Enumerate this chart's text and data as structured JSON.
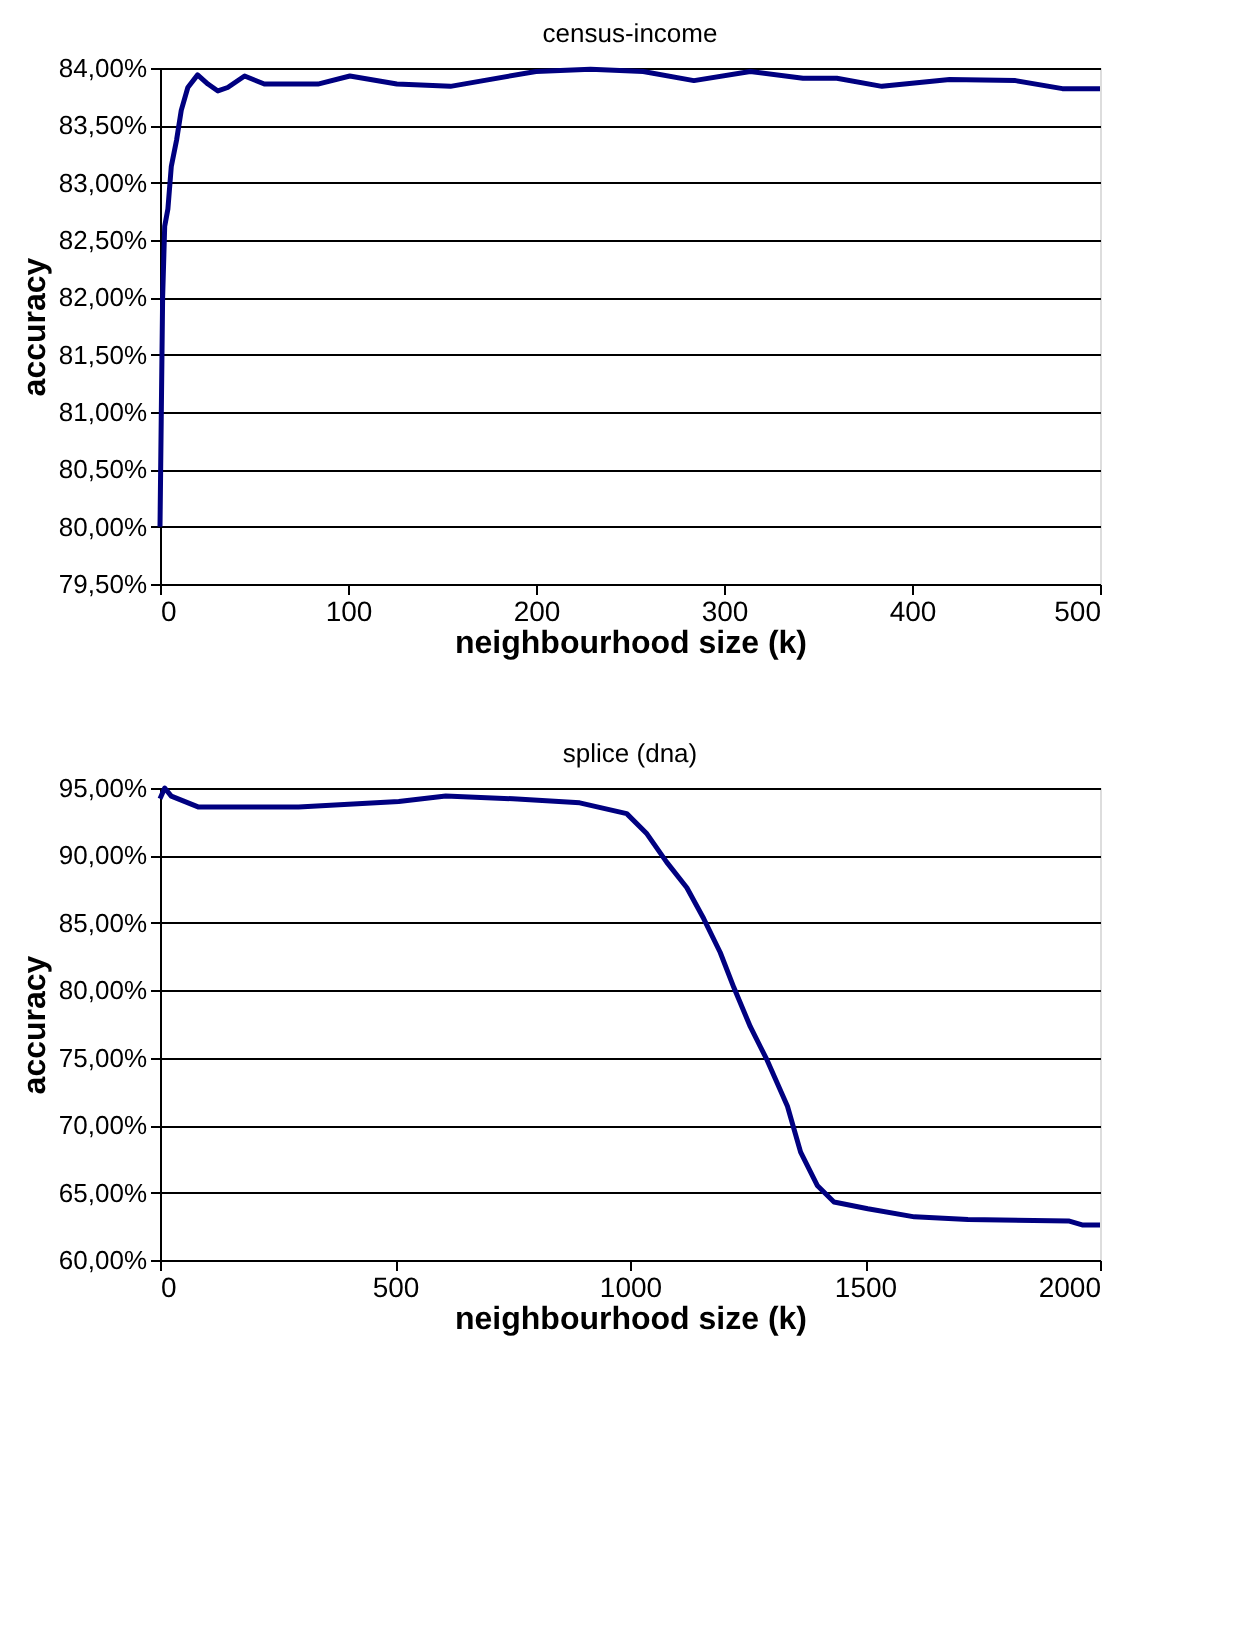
{
  "chart_data": [
    {
      "type": "line",
      "title": "census-income",
      "xlabel": "neighbourhood size (k)",
      "ylabel": "accuracy",
      "xlim": [
        0,
        500
      ],
      "xticks": [
        0,
        100,
        200,
        300,
        400,
        500
      ],
      "ylim": [
        79.5,
        84
      ],
      "yticks": [
        {
          "value": 79.5,
          "label": "79,50%"
        },
        {
          "value": 80,
          "label": "80,00%"
        },
        {
          "value": 80.5,
          "label": "80,50%"
        },
        {
          "value": 81,
          "label": "81,00%"
        },
        {
          "value": 81.5,
          "label": "81,50%"
        },
        {
          "value": 82,
          "label": "82,00%"
        },
        {
          "value": 82.5,
          "label": "82,50%"
        },
        {
          "value": 83,
          "label": "83,00%"
        },
        {
          "value": 83.5,
          "label": "83,50%"
        },
        {
          "value": 84,
          "label": "84,00%"
        }
      ],
      "grid": "y",
      "marker": "none",
      "line_style": "solid",
      "x": [
        0,
        1.4,
        2.5,
        4.2,
        6,
        8.8,
        11.3,
        14.8,
        20,
        25.5,
        30.8,
        36,
        45,
        55.5,
        84,
        101,
        126,
        154.5,
        172,
        200,
        229,
        257,
        284,
        314,
        342,
        360,
        384,
        420,
        455,
        480,
        500
      ],
      "series": [
        {
          "color": "#000080",
          "values": [
            80.0,
            82.0,
            82.62,
            82.77,
            83.14,
            83.37,
            83.63,
            83.83,
            83.94,
            83.86,
            83.8,
            83.83,
            83.93,
            83.86,
            83.86,
            83.93,
            83.86,
            83.84,
            83.89,
            83.97,
            83.99,
            83.97,
            83.89,
            83.97,
            83.91,
            83.91,
            83.84,
            83.9,
            83.89,
            83.82,
            83.82
          ]
        }
      ]
    },
    {
      "type": "line",
      "title": "splice (dna)",
      "xlabel": "neighbourhood size (k)",
      "ylabel": "accuracy",
      "xlim": [
        0,
        2000
      ],
      "xticks": [
        0,
        500,
        1000,
        1500,
        2000
      ],
      "ylim": [
        60,
        95
      ],
      "yticks": [
        {
          "value": 60,
          "label": "60,00%"
        },
        {
          "value": 65,
          "label": "65,00%"
        },
        {
          "value": 70,
          "label": "70,00%"
        },
        {
          "value": 75,
          "label": "75,00%"
        },
        {
          "value": 80,
          "label": "80,00%"
        },
        {
          "value": 85,
          "label": "85,00%"
        },
        {
          "value": 90,
          "label": "90,00%"
        },
        {
          "value": 95,
          "label": "95,00%"
        }
      ],
      "grid": "y",
      "marker": "none",
      "line_style": "solid",
      "x": [
        0,
        10,
        24,
        81,
        295,
        508,
        608,
        751,
        893,
        993,
        1036,
        1078,
        1121,
        1157,
        1192,
        1221,
        1256,
        1292,
        1335,
        1363,
        1399,
        1434,
        1506,
        1605,
        1719,
        1933,
        1962,
        2000
      ],
      "series": [
        {
          "color": "#000080",
          "values": [
            94.2,
            95.0,
            94.4,
            93.6,
            93.6,
            94.0,
            94.4,
            94.2,
            93.9,
            93.1,
            91.6,
            89.5,
            87.6,
            85.3,
            82.8,
            80.2,
            77.3,
            74.8,
            71.4,
            68.0,
            65.5,
            64.3,
            63.8,
            63.2,
            63.0,
            62.9,
            62.6,
            62.6
          ]
        }
      ]
    }
  ]
}
